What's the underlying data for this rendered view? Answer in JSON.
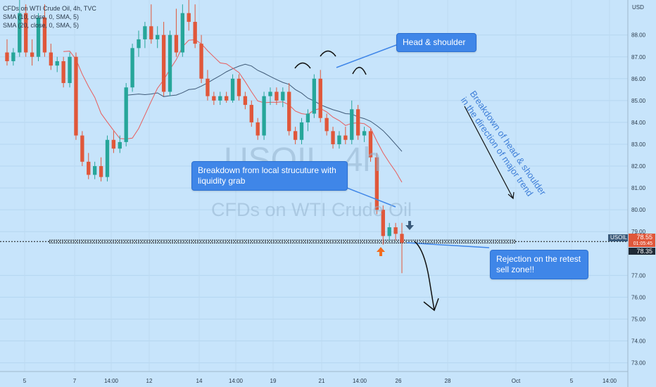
{
  "legend": {
    "line1": "CFDs on WTI Crude Oil, 4h, TVC",
    "line2": "SMA (10, close, 0, SMA, 5)",
    "line3": "SMA (20, close, 0, SMA, 5)"
  },
  "watermark": {
    "symbol": "USOIL, 4h",
    "name": "CFDs on WTI Crude Oil"
  },
  "annotations": {
    "head_shoulder": "Head & shoulder",
    "breakdown": "Breakdown from local strucuture with liquidity grab",
    "rejection": "Rejection on the retest sell zone!!",
    "rotated": "Breakdown of head & shoulder in the direction of major trend"
  },
  "price_axis": {
    "currency": "USD",
    "symbol_tag": "USOIL",
    "last_price": "78.55",
    "countdown": "01:05:45",
    "low_price": "78.35"
  },
  "colors": {
    "background": "#c7e4fb",
    "up_candle": "#26a69a",
    "down_candle": "#e0573a",
    "sma_fast": "#e85d5d",
    "sma_slow": "#3f5a78",
    "accent": "#3f86e8"
  },
  "chart_data": {
    "type": "candlestick",
    "y_ticks": [
      "88.00",
      "87.00",
      "86.00",
      "85.00",
      "84.00",
      "83.00",
      "82.00",
      "81.00",
      "80.00",
      "79.00",
      "77.00",
      "76.00",
      "75.00",
      "74.00",
      "73.00"
    ],
    "ylim": [
      72.6,
      89.6
    ],
    "x_ticks": [
      "5",
      "7",
      "14:00",
      "12",
      "14",
      "14:00",
      "19",
      "21",
      "14:00",
      "26",
      "28",
      "Oct",
      "5",
      "14:00"
    ],
    "support_level": 78.55,
    "candles": [
      [
        87.2,
        87.8,
        86.6,
        86.8
      ],
      [
        86.8,
        87.4,
        86.6,
        87.2
      ],
      [
        87.2,
        89.6,
        87.0,
        89.0
      ],
      [
        89.0,
        89.4,
        87.0,
        87.2
      ],
      [
        87.2,
        87.8,
        86.6,
        87.0
      ],
      [
        87.0,
        89.0,
        86.8,
        88.8
      ],
      [
        88.8,
        89.4,
        87.0,
        87.2
      ],
      [
        87.2,
        87.6,
        86.4,
        86.6
      ],
      [
        86.6,
        87.0,
        86.3,
        86.8
      ],
      [
        86.8,
        87.0,
        85.6,
        85.8
      ],
      [
        85.8,
        87.2,
        85.6,
        87.0
      ],
      [
        87.0,
        87.2,
        83.2,
        83.4
      ],
      [
        83.4,
        83.6,
        82.0,
        82.2
      ],
      [
        82.2,
        82.6,
        81.4,
        81.6
      ],
      [
        81.6,
        82.2,
        81.4,
        82.0
      ],
      [
        82.0,
        82.4,
        81.3,
        81.5
      ],
      [
        81.5,
        83.4,
        81.3,
        83.2
      ],
      [
        83.2,
        83.6,
        82.6,
        82.8
      ],
      [
        82.8,
        83.4,
        82.6,
        83.1
      ],
      [
        83.1,
        85.8,
        82.9,
        85.6
      ],
      [
        85.6,
        87.6,
        85.4,
        87.4
      ],
      [
        87.4,
        88.2,
        87.0,
        87.8
      ],
      [
        87.8,
        88.6,
        87.4,
        88.4
      ],
      [
        88.4,
        89.4,
        87.6,
        87.8
      ],
      [
        87.8,
        88.4,
        87.4,
        88.0
      ],
      [
        88.0,
        88.6,
        85.2,
        85.4
      ],
      [
        85.4,
        88.2,
        85.2,
        88.0
      ],
      [
        88.0,
        89.2,
        87.0,
        87.2
      ],
      [
        87.2,
        89.4,
        87.0,
        89.0
      ],
      [
        89.0,
        89.6,
        88.2,
        88.6
      ],
      [
        88.6,
        89.4,
        87.4,
        87.6
      ],
      [
        87.6,
        88.0,
        85.8,
        86.0
      ],
      [
        86.0,
        86.4,
        85.0,
        85.2
      ],
      [
        85.2,
        85.4,
        84.8,
        85.0
      ],
      [
        85.0,
        85.4,
        84.8,
        85.2
      ],
      [
        85.2,
        85.4,
        84.9,
        85.0
      ],
      [
        85.0,
        86.2,
        84.9,
        86.0
      ],
      [
        86.0,
        86.2,
        85.0,
        85.2
      ],
      [
        85.2,
        85.4,
        84.6,
        84.8
      ],
      [
        84.8,
        85.0,
        83.8,
        84.0
      ],
      [
        84.0,
        84.2,
        83.2,
        83.4
      ],
      [
        83.4,
        85.4,
        83.2,
        85.2
      ],
      [
        85.2,
        85.6,
        84.8,
        85.4
      ],
      [
        85.4,
        85.6,
        84.8,
        85.0
      ],
      [
        85.0,
        85.6,
        84.7,
        85.4
      ],
      [
        85.4,
        85.8,
        83.4,
        83.6
      ],
      [
        83.6,
        83.8,
        83.0,
        83.2
      ],
      [
        83.2,
        84.2,
        83.0,
        84.0
      ],
      [
        84.0,
        84.6,
        83.6,
        84.4
      ],
      [
        84.4,
        86.2,
        84.2,
        86.0
      ],
      [
        86.0,
        86.4,
        84.0,
        84.2
      ],
      [
        84.2,
        84.4,
        83.4,
        83.6
      ],
      [
        83.6,
        83.8,
        82.8,
        83.0
      ],
      [
        83.0,
        83.6,
        82.8,
        83.4
      ],
      [
        83.4,
        83.8,
        83.0,
        83.2
      ],
      [
        83.2,
        85.0,
        83.0,
        84.6
      ],
      [
        84.6,
        84.8,
        83.2,
        83.4
      ],
      [
        83.4,
        83.8,
        83.1,
        83.6
      ],
      [
        83.6,
        83.7,
        82.2,
        82.4
      ],
      [
        82.4,
        82.6,
        79.8,
        80.0
      ],
      [
        80.0,
        80.2,
        78.4,
        78.8
      ],
      [
        78.8,
        79.4,
        78.6,
        79.2
      ],
      [
        79.2,
        79.4,
        78.6,
        78.9
      ],
      [
        78.9,
        79.4,
        77.1,
        78.5
      ]
    ]
  }
}
